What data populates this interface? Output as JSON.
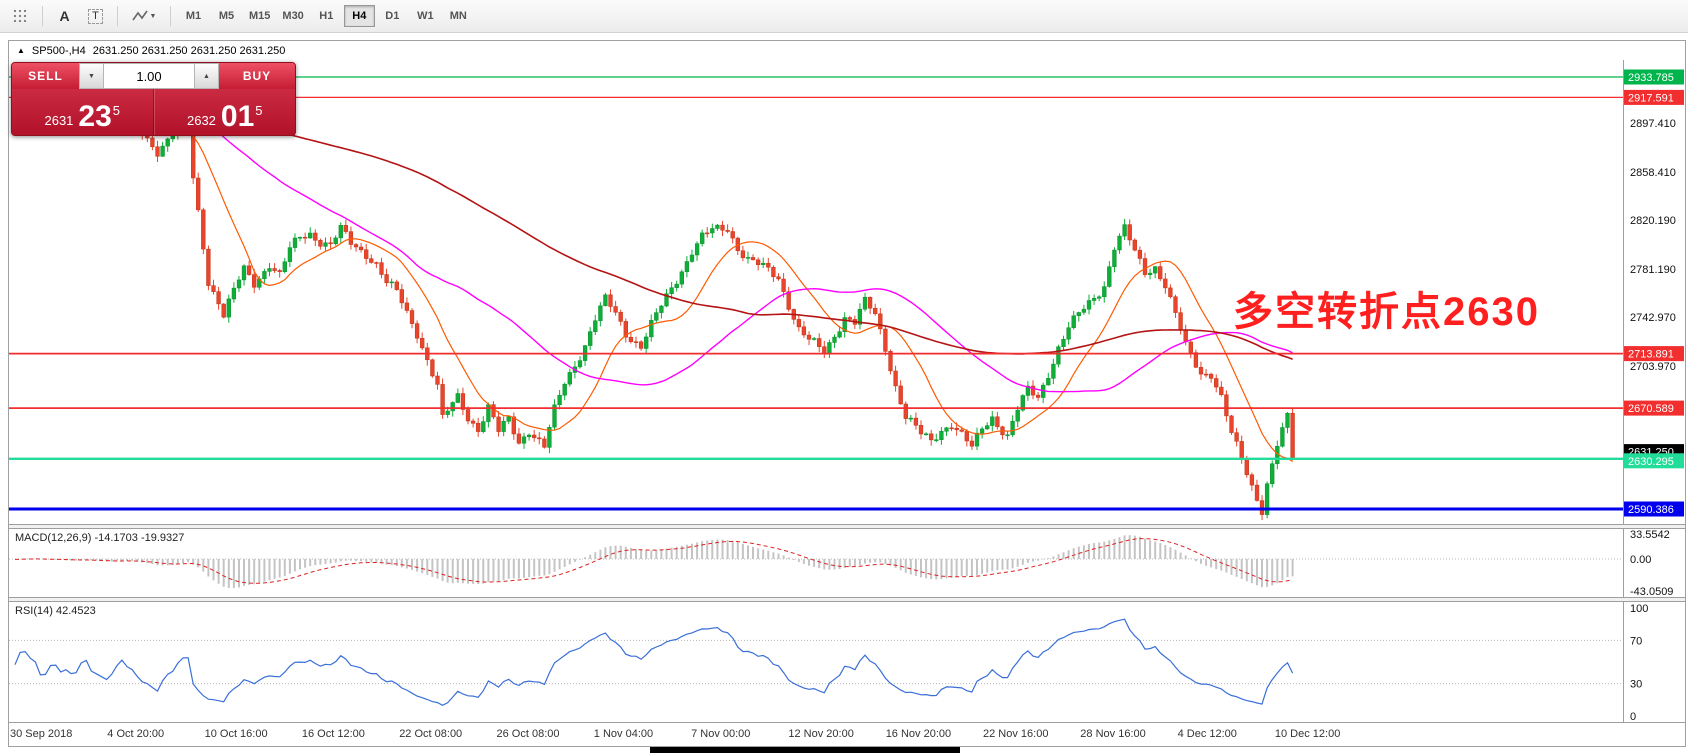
{
  "toolbar": {
    "text_tool_label": "A",
    "textbox_tool_label": "T",
    "caret": "▼",
    "timeframes": [
      {
        "label": "M1",
        "active": false
      },
      {
        "label": "M5",
        "active": false
      },
      {
        "label": "M15",
        "active": false
      },
      {
        "label": "M30",
        "active": false
      },
      {
        "label": "H1",
        "active": false
      },
      {
        "label": "H4",
        "active": true
      },
      {
        "label": "D1",
        "active": false
      },
      {
        "label": "W1",
        "active": false
      },
      {
        "label": "MN",
        "active": false
      }
    ]
  },
  "header": {
    "collapse_glyph": "▲",
    "symbol": "SP500-,H4",
    "ohlc": "2631.250 2631.250 2631.250 2631.250"
  },
  "trade_panel": {
    "sell_label": "SELL",
    "buy_label": "BUY",
    "volume": "1.00",
    "spinner_down": "▼",
    "spinner_up": "▲",
    "sell": {
      "small": "2631",
      "big": "23",
      "sup": "5"
    },
    "buy": {
      "small": "2632",
      "big": "01",
      "sup": "5"
    }
  },
  "annotation": {
    "text": "多空转折点2630",
    "color": "#ff1f1f"
  },
  "macd_panel": {
    "label": "MACD(12,26,9) -14.1703 -19.9327",
    "scale_labels": [
      "33.5542",
      "0.00",
      "-43.0509"
    ]
  },
  "rsi_panel": {
    "label": "RSI(14) 42.4523",
    "scale_labels": [
      "100",
      "70",
      "30",
      "0"
    ]
  },
  "chart_data": {
    "type": "candlestick",
    "symbol": "SP500-",
    "timeframe": "H4",
    "bars": 252,
    "colors": {
      "up": "#0fae38",
      "up_dark": "#0a8f2c",
      "down": "#e8452c",
      "down_dark": "#c23318",
      "rsi": "#3a6fd8"
    },
    "levels": [
      {
        "label": "2933.785",
        "value": 2933.785,
        "color": "#00b44c",
        "width": 1.2
      },
      {
        "label": "2917.591",
        "value": 2917.591,
        "color": "#f22e2e",
        "width": 1.2
      },
      {
        "label": "2713.891",
        "value": 2713.891,
        "color": "#f22e2e",
        "width": 1.8
      },
      {
        "label": "2670.589",
        "value": 2670.589,
        "color": "#f22e2e",
        "width": 1.8
      },
      {
        "label": "2630.295",
        "value": 2630.295,
        "color": "#22dd99",
        "width": 2.4
      },
      {
        "label": "2590.386",
        "value": 2590.386,
        "color": "#0000ee",
        "width": 3
      }
    ],
    "current_price": {
      "label": "2631.250",
      "value": 2631.25
    },
    "y_axis_ticks": [
      {
        "label": "2897.410",
        "value": 2897.41
      },
      {
        "label": "2858.410",
        "value": 2858.41
      },
      {
        "label": "2820.190",
        "value": 2820.19
      },
      {
        "label": "2781.190",
        "value": 2781.19
      },
      {
        "label": "2742.970",
        "value": 2742.97
      },
      {
        "label": "2703.970",
        "value": 2703.97
      }
    ],
    "x_axis_labels": [
      "30 Sep 2018",
      "4 Oct 20:00",
      "10 Oct 16:00",
      "16 Oct 12:00",
      "22 Oct 08:00",
      "26 Oct 08:00",
      "1 Nov 04:00",
      "7 Nov 00:00",
      "12 Nov 20:00",
      "16 Nov 20:00",
      "22 Nov 16:00",
      "28 Nov 16:00",
      "4 Dec 12:00",
      "10 Dec 12:00"
    ],
    "moving_averages": [
      {
        "period": 13,
        "color": "#ff5a00",
        "width": 1.2
      },
      {
        "period": 45,
        "color": "#ff00ff",
        "width": 1.4
      },
      {
        "period": 110,
        "color": "#b41414",
        "width": 1.6
      }
    ],
    "indicators": {
      "macd": {
        "fast": 12,
        "slow": 26,
        "signal": 9,
        "value": -14.1703,
        "signal_value": -19.9327,
        "scale": [
          33.5542,
          0,
          -43.0509
        ]
      },
      "rsi": {
        "period": 14,
        "value": 42.4523,
        "levels": [
          70,
          30
        ]
      }
    },
    "close_waypoints": [
      [
        0,
        2915
      ],
      [
        2,
        2921
      ],
      [
        5,
        2909
      ],
      [
        8,
        2917
      ],
      [
        11,
        2905
      ],
      [
        14,
        2911
      ],
      [
        17,
        2902
      ],
      [
        20,
        2906
      ],
      [
        21,
        2912
      ],
      [
        23,
        2898
      ],
      [
        26,
        2884
      ],
      [
        28,
        2876
      ],
      [
        32,
        2894
      ],
      [
        34,
        2902
      ],
      [
        35,
        2852
      ],
      [
        37,
        2800
      ],
      [
        38,
        2772
      ],
      [
        40,
        2756
      ],
      [
        41,
        2745
      ],
      [
        43,
        2763
      ],
      [
        45,
        2780
      ],
      [
        47,
        2770
      ],
      [
        50,
        2786
      ],
      [
        52,
        2776
      ],
      [
        54,
        2796
      ],
      [
        56,
        2806
      ],
      [
        58,
        2810
      ],
      [
        60,
        2804
      ],
      [
        62,
        2800
      ],
      [
        64,
        2812
      ],
      [
        66,
        2801
      ],
      [
        69,
        2794
      ],
      [
        71,
        2786
      ],
      [
        73,
        2770
      ],
      [
        75,
        2762
      ],
      [
        77,
        2746
      ],
      [
        79,
        2731
      ],
      [
        81,
        2710
      ],
      [
        83,
        2688
      ],
      [
        84,
        2661
      ],
      [
        87,
        2679
      ],
      [
        89,
        2664
      ],
      [
        91,
        2655
      ],
      [
        93,
        2671
      ],
      [
        95,
        2651
      ],
      [
        97,
        2661
      ],
      [
        99,
        2644
      ],
      [
        101,
        2654
      ],
      [
        104,
        2639
      ],
      [
        106,
        2668
      ],
      [
        108,
        2691
      ],
      [
        110,
        2706
      ],
      [
        112,
        2721
      ],
      [
        114,
        2741
      ],
      [
        116,
        2756
      ],
      [
        118,
        2746
      ],
      [
        120,
        2731
      ],
      [
        123,
        2720
      ],
      [
        125,
        2736
      ],
      [
        127,
        2751
      ],
      [
        129,
        2766
      ],
      [
        131,
        2781
      ],
      [
        133,
        2796
      ],
      [
        135,
        2806
      ],
      [
        137,
        2811
      ],
      [
        140,
        2814
      ],
      [
        142,
        2799
      ],
      [
        144,
        2789
      ],
      [
        146,
        2784
      ],
      [
        148,
        2779
      ],
      [
        150,
        2774
      ],
      [
        152,
        2754
      ],
      [
        154,
        2734
      ],
      [
        156,
        2724
      ],
      [
        159,
        2714
      ],
      [
        161,
        2729
      ],
      [
        163,
        2744
      ],
      [
        165,
        2739
      ],
      [
        167,
        2754
      ],
      [
        169,
        2744
      ],
      [
        171,
        2719
      ],
      [
        173,
        2689
      ],
      [
        175,
        2664
      ],
      [
        178,
        2649
      ],
      [
        180,
        2644
      ],
      [
        182,
        2654
      ],
      [
        184,
        2659
      ],
      [
        186,
        2649
      ],
      [
        188,
        2638
      ],
      [
        190,
        2654
      ],
      [
        192,
        2664
      ],
      [
        195,
        2649
      ],
      [
        197,
        2669
      ],
      [
        199,
        2684
      ],
      [
        201,
        2679
      ],
      [
        203,
        2699
      ],
      [
        205,
        2719
      ],
      [
        207,
        2734
      ],
      [
        209,
        2744
      ],
      [
        211,
        2754
      ],
      [
        214,
        2769
      ],
      [
        216,
        2799
      ],
      [
        218,
        2812
      ],
      [
        220,
        2794
      ],
      [
        222,
        2779
      ],
      [
        224,
        2784
      ],
      [
        226,
        2769
      ],
      [
        228,
        2744
      ],
      [
        230,
        2719
      ],
      [
        233,
        2699
      ],
      [
        235,
        2699
      ],
      [
        237,
        2679
      ],
      [
        239,
        2649
      ],
      [
        241,
        2629
      ],
      [
        243,
        2609
      ],
      [
        245,
        2591
      ],
      [
        246,
        2611
      ],
      [
        248,
        2641
      ],
      [
        250,
        2662
      ],
      [
        251,
        2631
      ]
    ]
  }
}
